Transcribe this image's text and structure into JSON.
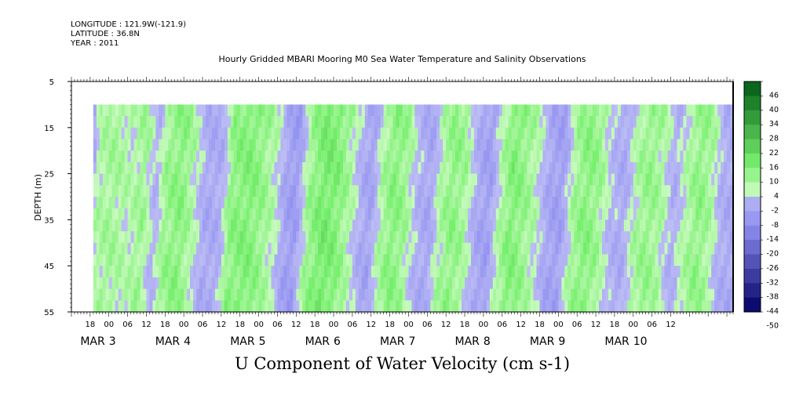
{
  "header": {
    "longitude": "LONGITUDE : 121.9W(-121.9)",
    "latitude": "LATITUDE : 36.8N",
    "year": "YEAR : 2011",
    "title": "Hourly Gridded MBARI Mooring M0 Sea Water Temperature and Salinity Observations"
  },
  "chart_data": {
    "type": "heatmap",
    "title": "Hourly Gridded MBARI Mooring M0 Sea Water Temperature and Salinity Observations",
    "xlabel": "U Component of Water Velocity (cm s-1)",
    "ylabel": "DEPTH (m)",
    "ylim": [
      55,
      5
    ],
    "y_ticks": [
      "5",
      "15",
      "25",
      "35",
      "45",
      "55"
    ],
    "x_range_hours_since_mar2_12": [
      0,
      212
    ],
    "data_start_hour": 7,
    "data_depth_range": [
      10,
      55
    ],
    "x_hour_ticks": [
      "18",
      "00",
      "06",
      "12",
      "18",
      "00",
      "06",
      "12",
      "18",
      "00",
      "06",
      "12",
      "18",
      "00",
      "06",
      "12",
      "18",
      "00",
      "06",
      "12",
      "18",
      "00",
      "06",
      "12",
      "18",
      "00",
      "06",
      "12",
      "18",
      "00",
      "06",
      "12"
    ],
    "x_day_labels": [
      {
        "month": "MAR",
        "day": "3"
      },
      {
        "month": "MAR",
        "day": "4"
      },
      {
        "month": "MAR",
        "day": "5"
      },
      {
        "month": "MAR",
        "day": "6"
      },
      {
        "month": "MAR",
        "day": "7"
      },
      {
        "month": "MAR",
        "day": "8"
      },
      {
        "month": "MAR",
        "day": "9"
      },
      {
        "month": "MAR",
        "day": "10"
      }
    ],
    "colorbar": {
      "levels": [
        -50,
        -44,
        -38,
        -32,
        -26,
        -20,
        -14,
        -8,
        -2,
        4,
        10,
        16,
        22,
        28,
        34,
        40,
        46
      ],
      "level_labels": [
        "46",
        "40",
        "34",
        "28",
        "22",
        "16",
        "10",
        "4",
        "-2",
        "-8",
        "-14",
        "-20",
        "-26",
        "-32",
        "-38",
        "-44",
        "-50"
      ],
      "negative_color": "#3232c8",
      "positive_color": "#00a000"
    },
    "column_profile": [
      {
        "h": 7,
        "v": -8
      },
      {
        "h": 9,
        "v": 3
      },
      {
        "h": 14,
        "v": 5
      },
      {
        "h": 20,
        "v": 2
      },
      {
        "h": 24,
        "v": 6
      },
      {
        "h": 28,
        "v": -4
      },
      {
        "h": 31,
        "v": 6
      },
      {
        "h": 36,
        "v": 9
      },
      {
        "h": 40,
        "v": 3
      },
      {
        "h": 44,
        "v": -6
      },
      {
        "h": 49,
        "v": -5
      },
      {
        "h": 52,
        "v": 8
      },
      {
        "h": 58,
        "v": 10
      },
      {
        "h": 62,
        "v": 7
      },
      {
        "h": 66,
        "v": 2
      },
      {
        "h": 70,
        "v": -8
      },
      {
        "h": 73,
        "v": -10
      },
      {
        "h": 77,
        "v": 6
      },
      {
        "h": 82,
        "v": 12
      },
      {
        "h": 86,
        "v": 10
      },
      {
        "h": 90,
        "v": 4
      },
      {
        "h": 94,
        "v": -5
      },
      {
        "h": 97,
        "v": -8
      },
      {
        "h": 100,
        "v": 3
      },
      {
        "h": 104,
        "v": 9
      },
      {
        "h": 108,
        "v": 6
      },
      {
        "h": 112,
        "v": -4
      },
      {
        "h": 116,
        "v": -7
      },
      {
        "h": 119,
        "v": 3
      },
      {
        "h": 123,
        "v": 8
      },
      {
        "h": 127,
        "v": 5
      },
      {
        "h": 131,
        "v": -6
      },
      {
        "h": 135,
        "v": -9
      },
      {
        "h": 138,
        "v": 2
      },
      {
        "h": 142,
        "v": 10
      },
      {
        "h": 146,
        "v": 7
      },
      {
        "h": 150,
        "v": 2
      },
      {
        "h": 154,
        "v": -7
      },
      {
        "h": 158,
        "v": -9
      },
      {
        "h": 162,
        "v": 5
      },
      {
        "h": 166,
        "v": 9
      },
      {
        "h": 170,
        "v": 6
      },
      {
        "h": 174,
        "v": -3
      },
      {
        "h": 178,
        "v": -6
      },
      {
        "h": 182,
        "v": 4
      },
      {
        "h": 186,
        "v": 7
      },
      {
        "h": 190,
        "v": 4
      },
      {
        "h": 194,
        "v": -5
      },
      {
        "h": 198,
        "v": 3
      },
      {
        "h": 202,
        "v": 8
      },
      {
        "h": 206,
        "v": 4
      },
      {
        "h": 209,
        "v": -4
      },
      {
        "h": 212,
        "v": -6
      }
    ]
  }
}
